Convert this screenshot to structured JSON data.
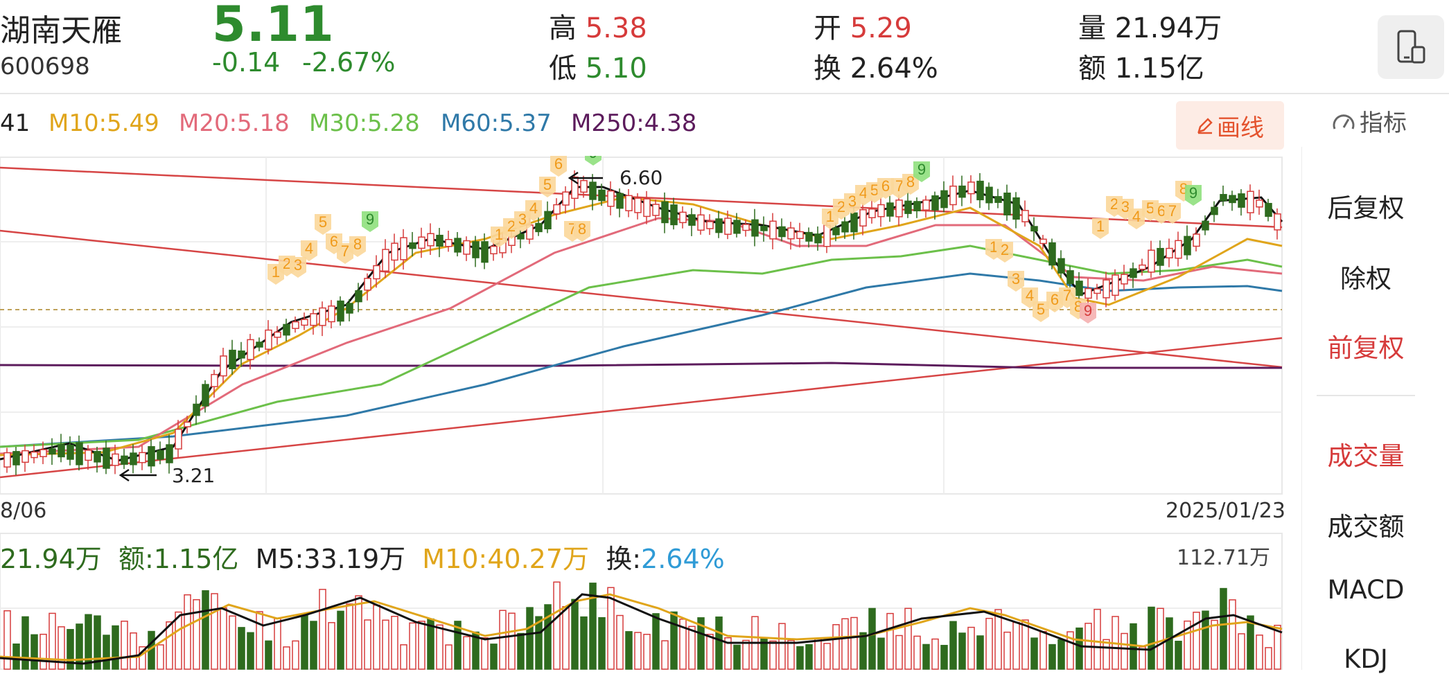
{
  "header": {
    "stock_name": "湖南天雁",
    "stock_code": "600698",
    "price": "5.11",
    "change": "-0.14",
    "change_pct": "-2.67%",
    "high_label": "高",
    "high_value": "5.38",
    "low_label": "低",
    "low_value": "5.10",
    "open_label": "开",
    "open_value": "5.29",
    "turnover_label": "换",
    "turnover_value": "2.64%",
    "volume_label": "量",
    "volume_value": "21.94万",
    "amount_label": "额",
    "amount_value": "1.15亿"
  },
  "ma_legend": {
    "m5": "41",
    "m10": "M10:5.49",
    "m20": "M20:5.18",
    "m30": "M30:5.28",
    "m60": "M60:5.37",
    "m250": "M250:4.38"
  },
  "draw_button": "画线",
  "indicator_label": "指标",
  "right_panel": {
    "items": [
      "后复权",
      "除权",
      "前复权",
      "成交量",
      "成交额",
      "MACD",
      "KDJ"
    ]
  },
  "chart": {
    "date_start": "8/06",
    "date_end": "2025/01/23",
    "high_marker": "6.60",
    "low_marker": "3.21"
  },
  "volume": {
    "vol": "21.94万",
    "amount": "额:1.15亿",
    "m5": "M5:33.19万",
    "m10": "M10:40.27万",
    "turnover_label": "换:",
    "turnover_value": "2.64%",
    "max_label": "112.71万"
  },
  "colors": {
    "up": "#d63b3b",
    "down": "#2e6b1e",
    "m10": "#e0a51b",
    "m20": "#e26a7a",
    "m30": "#6cc04a",
    "m60": "#2f79a8",
    "m250": "#5c1b5c"
  }
}
